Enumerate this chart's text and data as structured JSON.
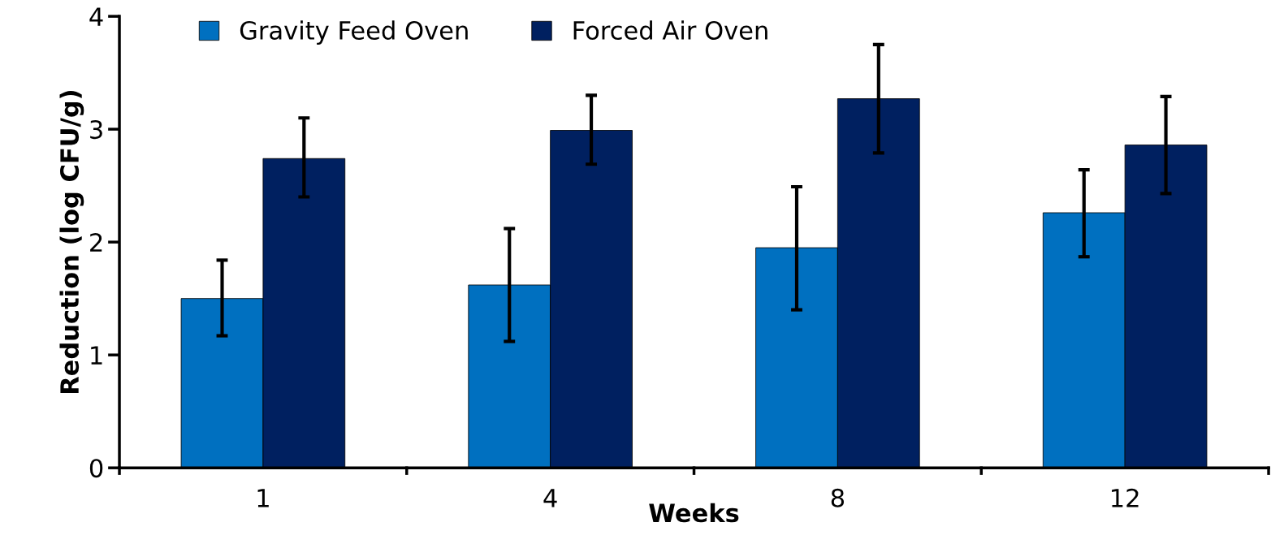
{
  "chart_data": {
    "type": "bar",
    "xlabel": "Weeks",
    "ylabel": "Reduction (log CFU/g)",
    "categories": [
      "1",
      "4",
      "8",
      "12"
    ],
    "series": [
      {
        "name": "Gravity Feed Oven",
        "color": "#0070c0",
        "values": [
          1.5,
          1.62,
          1.95,
          2.26
        ],
        "errors": [
          [
            1.17,
            1.84
          ],
          [
            1.12,
            2.12
          ],
          [
            1.4,
            2.49
          ],
          [
            1.87,
            2.64
          ]
        ]
      },
      {
        "name": "Forced Air Oven",
        "color": "#002060",
        "values": [
          2.74,
          2.99,
          3.27,
          2.86
        ],
        "errors": [
          [
            2.4,
            3.1
          ],
          [
            2.69,
            3.3
          ],
          [
            2.79,
            3.75
          ],
          [
            2.43,
            3.29
          ]
        ]
      }
    ],
    "ylim": [
      0,
      4
    ],
    "yticks": [
      0,
      1,
      2,
      3,
      4
    ],
    "grid": false,
    "legend": "top left"
  }
}
